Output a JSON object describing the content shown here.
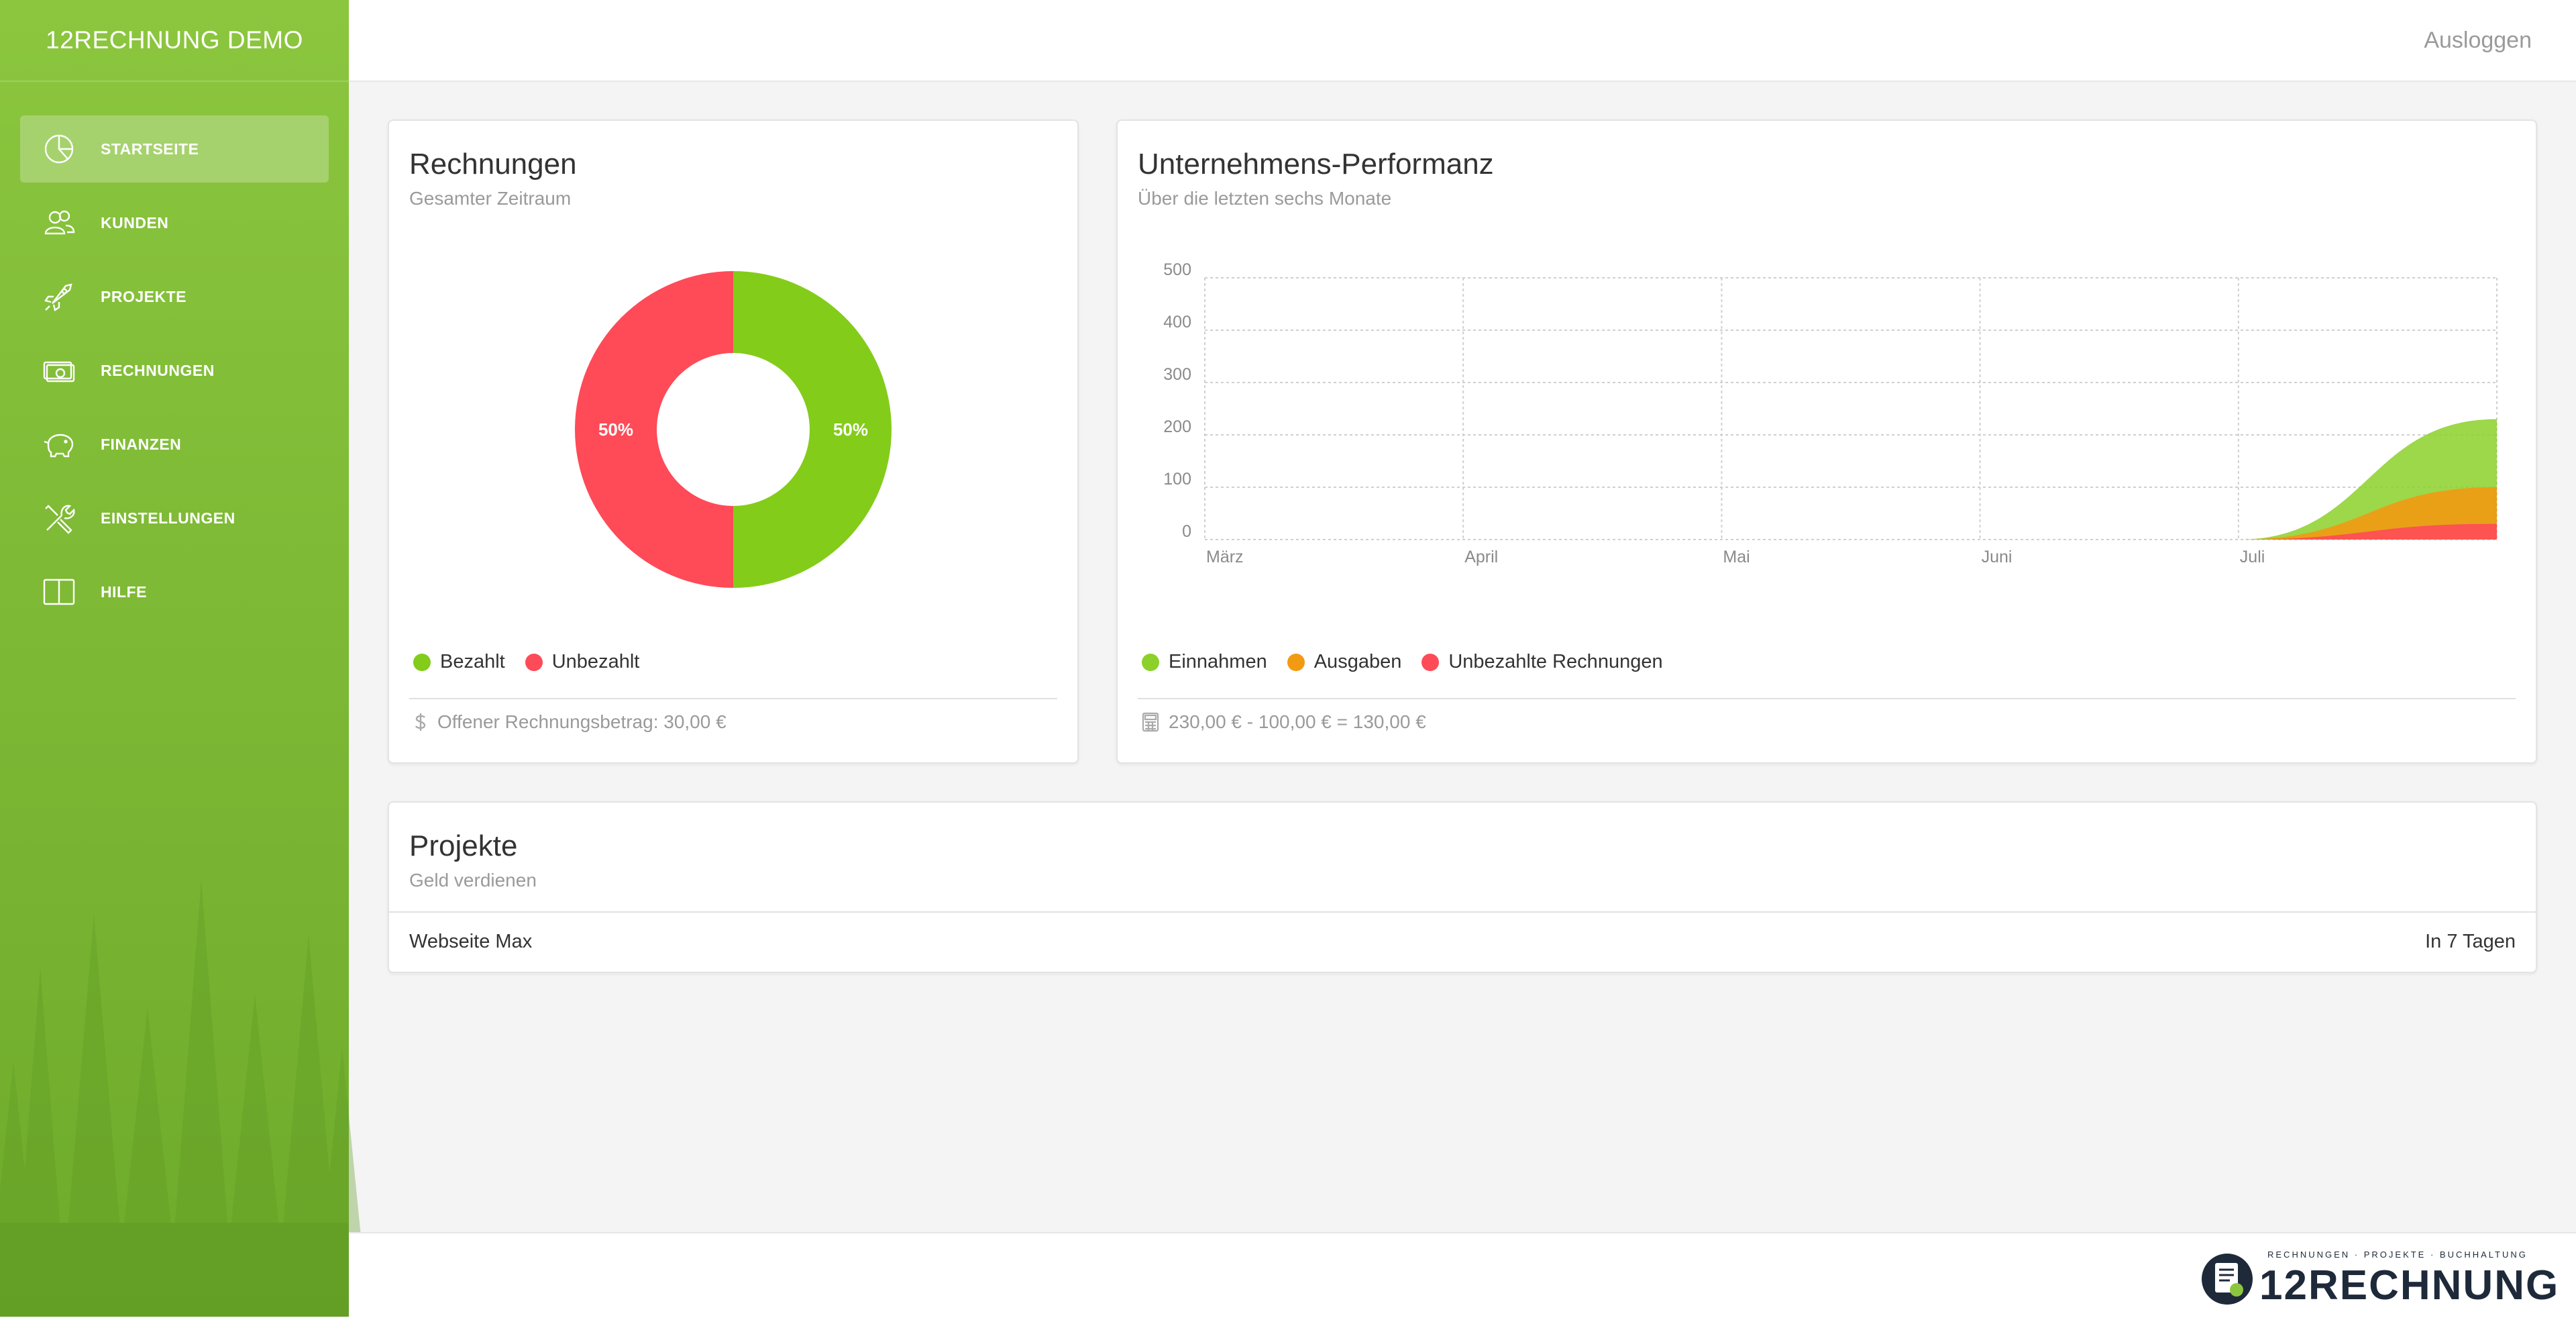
{
  "app": {
    "brand": "12RECHNUNG DEMO"
  },
  "sidebar": {
    "items": [
      {
        "label": "STARTSEITE",
        "icon": "pie-chart-icon",
        "active": true
      },
      {
        "label": "KUNDEN",
        "icon": "users-icon",
        "active": false
      },
      {
        "label": "PROJEKTE",
        "icon": "rocket-icon",
        "active": false
      },
      {
        "label": "RECHNUNGEN",
        "icon": "money-icon",
        "active": false
      },
      {
        "label": "FINANZEN",
        "icon": "piggy-bank-icon",
        "active": false
      },
      {
        "label": "EINSTELLUNGEN",
        "icon": "tools-icon",
        "active": false
      },
      {
        "label": "HILFE",
        "icon": "book-icon",
        "active": false
      }
    ]
  },
  "header": {
    "logout_label": "Ausloggen"
  },
  "invoices_card": {
    "title": "Rechnungen",
    "subtitle": "Gesamter Zeitraum",
    "legend": [
      "Bezahlt",
      "Unbezahlt"
    ],
    "footer_text": "Offener Rechnungsbetrag: 30,00 €",
    "colors": {
      "paid": "#83cc1a",
      "unpaid": "#ff4a58"
    }
  },
  "performance_card": {
    "title": "Unternehmens-Performanz",
    "subtitle": "Über die letzten sechs Monate",
    "legend": [
      "Einnahmen",
      "Ausgaben",
      "Unbezahlte Rechnungen"
    ],
    "footer_text": "230,00 € - 100,00 € = 130,00 €",
    "colors": {
      "income": "#8cd02a",
      "expenses": "#f29a12",
      "unpaid": "#ff4a58"
    }
  },
  "projects_card": {
    "title": "Projekte",
    "subtitle": "Geld verdienen",
    "rows": [
      {
        "name": "Webseite Max",
        "due": "In 7 Tagen"
      }
    ]
  },
  "footer": {
    "logo_text": "12RECHNUNG",
    "logo_tagline": "RECHNUNGEN · PROJEKTE · BUCHHALTUNG"
  },
  "chart_data": [
    {
      "type": "pie",
      "title": "Rechnungen",
      "labels": [
        "Bezahlt",
        "Unbezahlt"
      ],
      "values": [
        50,
        50
      ],
      "data_labels": [
        "50%",
        "50%"
      ],
      "donut": true
    },
    {
      "type": "area",
      "title": "Unternehmens-Performanz",
      "categories": [
        "März",
        "April",
        "Mai",
        "Juni",
        "Juli",
        ""
      ],
      "series": [
        {
          "name": "Einnahmen",
          "values": [
            0,
            0,
            0,
            0,
            0,
            230
          ]
        },
        {
          "name": "Ausgaben",
          "values": [
            0,
            0,
            0,
            0,
            0,
            100
          ]
        },
        {
          "name": "Unbezahlte Rechnungen",
          "values": [
            0,
            0,
            0,
            0,
            0,
            30
          ]
        }
      ],
      "ylim": [
        0,
        500
      ],
      "yticks": [
        0,
        100,
        200,
        300,
        400,
        500
      ],
      "grid": true,
      "legend": "bottom"
    }
  ]
}
